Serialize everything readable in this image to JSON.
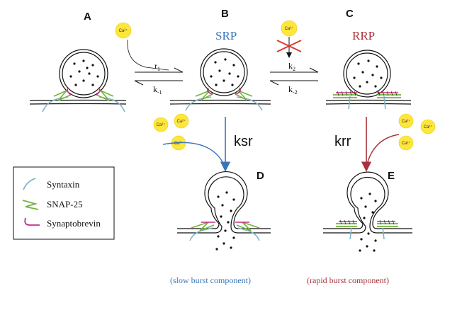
{
  "panels": {
    "a": "A",
    "b": "B",
    "c": "C",
    "d": "D",
    "e": "E"
  },
  "pools": {
    "srp": "SRP",
    "rrp": "RRP"
  },
  "rates": {
    "r1": "r",
    "r1_sub": "1",
    "km1": "k",
    "km1_sub": "-1",
    "k2": "k",
    "k2_sub": "2",
    "km2": "k",
    "km2_sub": "-2",
    "ksr": "ksr",
    "krr": "krr"
  },
  "calcium_label": "Ca²⁺",
  "legend": {
    "syntaxin": "Syntaxin",
    "snap25": "SNAP-25",
    "synaptobrevin": "Synaptobrevin"
  },
  "components": {
    "slow": "(slow burst component)",
    "rapid": "(rapid burst component)"
  },
  "colors": {
    "srp": "#3a75b8",
    "rrp": "#a8323c",
    "syntaxin": "#7fb7c4",
    "snap25": "#74b23c",
    "synaptobrevin": "#c2307f",
    "calcium": "#ffe63a",
    "block": "#e2342f"
  }
}
